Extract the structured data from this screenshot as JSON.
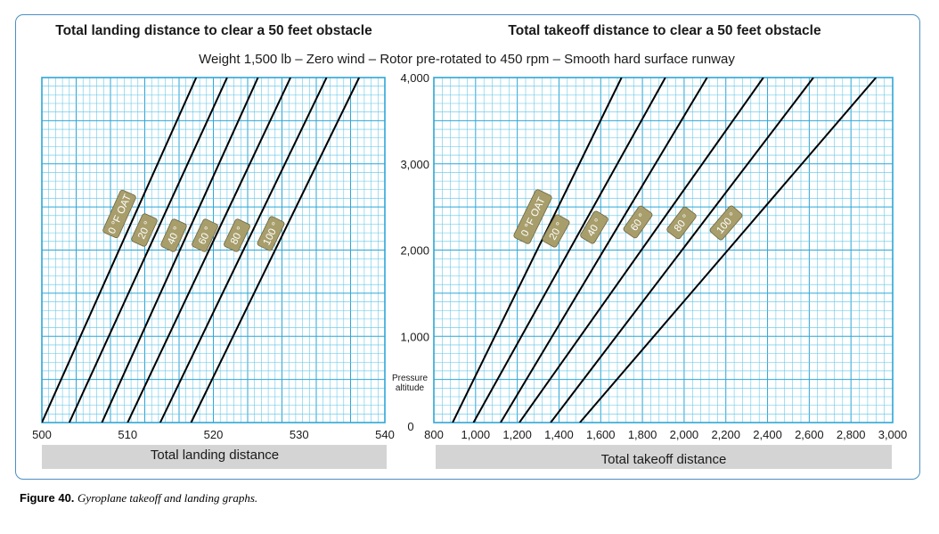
{
  "figure": {
    "subtitle": "Weight 1,500 lb – Zero wind – Rotor pre-rotated to 450 rpm – Smooth hard surface runway",
    "caption_label": "Figure 40.",
    "caption_text": "Gyroplane takeoff and landing graphs.",
    "colors": {
      "grid": "#5cc4e6",
      "grid_major": "#2ea6d6",
      "line": "#000000",
      "tag": "#a89e6c",
      "xlabel_band": "#d4d4d4",
      "frame": "#4a90c2"
    }
  },
  "y_axis": {
    "title_line1": "Pressure",
    "title_line2": "altitude",
    "ticks": [
      0,
      1000,
      2000,
      3000,
      4000
    ],
    "tick_labels": [
      "0",
      "1,000",
      "2,000",
      "3,000",
      "4,000"
    ]
  },
  "chart_data": [
    {
      "type": "line",
      "title": "Total landing distance to clear a 50 feet obstacle",
      "xlabel": "Total landing distance",
      "ylabel": "Pressure altitude",
      "xlim": [
        500,
        540
      ],
      "ylim": [
        0,
        4000
      ],
      "x_ticks": [
        500,
        510,
        520,
        530,
        540
      ],
      "x_tick_labels": [
        "500",
        "510",
        "520",
        "530",
        "540"
      ],
      "grid": true,
      "series": [
        {
          "name": "0 °F OAT",
          "x": [
            500,
            518
          ],
          "y": [
            0,
            4000
          ]
        },
        {
          "name": "20 °",
          "x": [
            503.2,
            521.6
          ],
          "y": [
            0,
            4000
          ]
        },
        {
          "name": "40 °",
          "x": [
            507,
            525.2
          ],
          "y": [
            0,
            4000
          ]
        },
        {
          "name": "60 °",
          "x": [
            510,
            529
          ],
          "y": [
            0,
            4000
          ]
        },
        {
          "name": "80 °",
          "x": [
            513.8,
            533.2
          ],
          "y": [
            0,
            4000
          ]
        },
        {
          "name": "100 °",
          "x": [
            517.4,
            537
          ],
          "y": [
            0,
            4000
          ]
        }
      ]
    },
    {
      "type": "line",
      "title": "Total takeoff distance to clear a 50 feet obstacle",
      "xlabel": "Total takeoff distance",
      "ylabel": "Pressure altitude",
      "xlim": [
        800,
        3000
      ],
      "ylim": [
        0,
        4000
      ],
      "x_ticks": [
        800,
        1000,
        1200,
        1400,
        1600,
        1800,
        2000,
        2200,
        2400,
        2600,
        2800,
        3000
      ],
      "x_tick_labels": [
        "800",
        "1,000",
        "1,200",
        "1,400",
        "1,600",
        "1,800",
        "2,000",
        "2,200",
        "2,400",
        "2,600",
        "2,800",
        "3,000"
      ],
      "grid": true,
      "series": [
        {
          "name": "0 °F OAT",
          "x": [
            890,
            1700
          ],
          "y": [
            0,
            4000
          ]
        },
        {
          "name": "20 °",
          "x": [
            990,
            1910
          ],
          "y": [
            0,
            4000
          ]
        },
        {
          "name": "40 °",
          "x": [
            1120,
            2110
          ],
          "y": [
            0,
            4000
          ]
        },
        {
          "name": "60 °",
          "x": [
            1210,
            2380
          ],
          "y": [
            0,
            4000
          ]
        },
        {
          "name": "80 °",
          "x": [
            1360,
            2620
          ],
          "y": [
            0,
            4000
          ]
        },
        {
          "name": "100 °",
          "x": [
            1500,
            2920
          ],
          "y": [
            0,
            4000
          ]
        }
      ]
    }
  ]
}
